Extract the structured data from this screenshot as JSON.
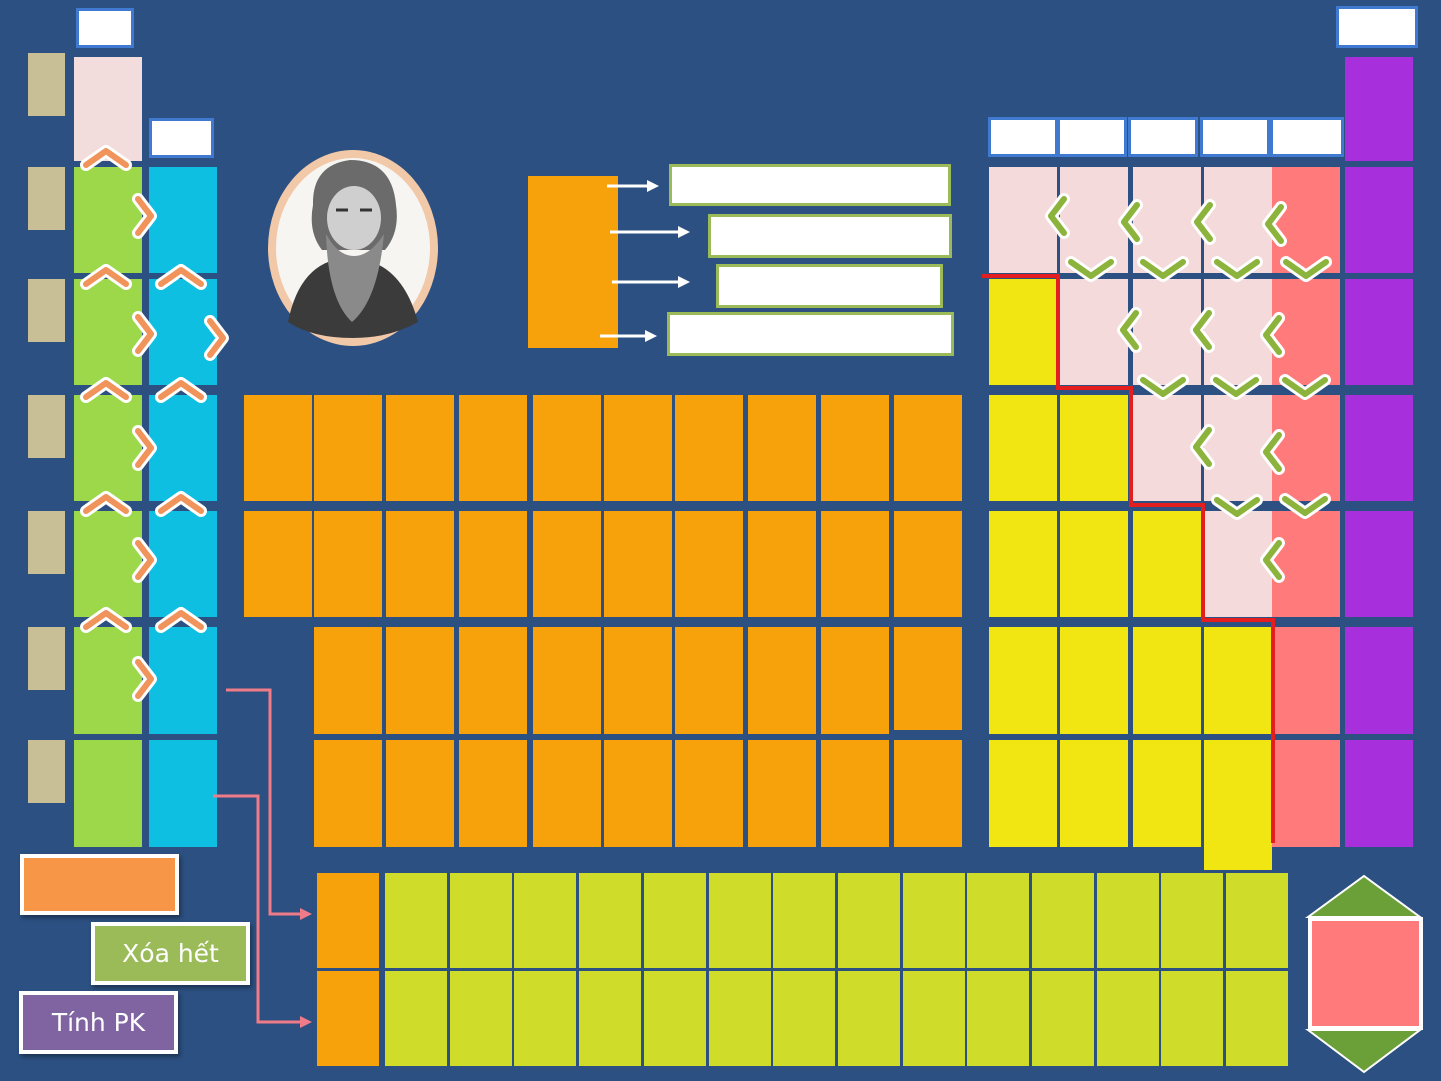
{
  "buttons": {
    "clear_all_label": "Xóa hết",
    "calc_pk_label": "Tính PK"
  },
  "icons": {
    "portrait": "mendeleev-portrait-icon",
    "up_chevron": "chevron-up-icon",
    "right_chevron": "chevron-right-icon",
    "left_chevron": "chevron-left-icon",
    "down_chevron": "chevron-down-icon",
    "nav_up": "triangle-up-icon",
    "nav_down": "triangle-down-icon"
  },
  "colors": {
    "background": "#2c5081",
    "period_label": "#c9bf97",
    "hydrogen": "#f3dcdc",
    "alkali": "#9dd84a",
    "alkaline_earth": "#0fbfe1",
    "transition": "#f7a10b",
    "f_block": "#cfdc2a",
    "metal_p": "#f1e512",
    "nonmetal": "#f4dada",
    "halogen": "#ff7b7b",
    "noble_gas": "#a82fdc",
    "metalloid_line": "#e41e1e",
    "chevron_orange": "#f0945c",
    "chevron_green": "#8cb33c",
    "clear_button": "#9bbb59",
    "calc_button": "#8064a2",
    "legend_box": "#f79646"
  },
  "table": {
    "periods": 7,
    "groups": 18,
    "lanthanide_actinide_rows": 2,
    "lanthanide_actinide_cols": 15
  }
}
